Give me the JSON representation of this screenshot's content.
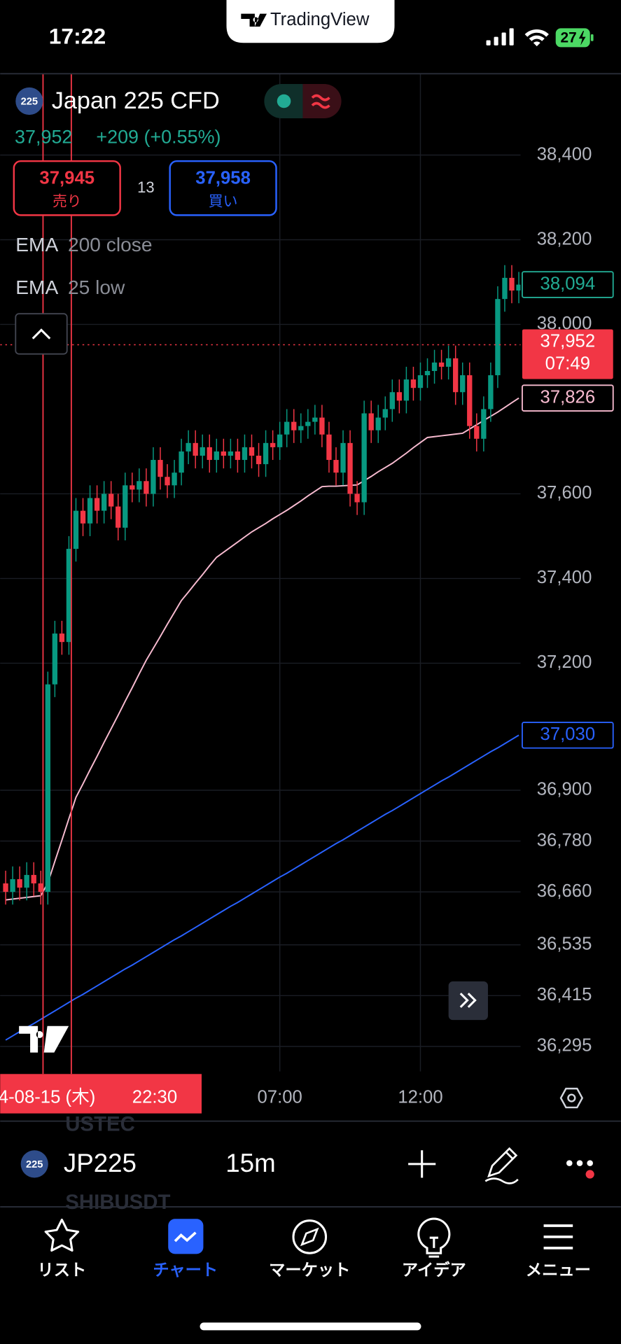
{
  "status_bar": {
    "time": "17:22",
    "battery": "27"
  },
  "app": {
    "brand": "TradingView"
  },
  "symbol": {
    "badge": "225",
    "name": "Japan 225 CFD",
    "price": "37,952",
    "change": "+209 (+0.55%)"
  },
  "quotes": {
    "sell": {
      "price": "37,945",
      "label": "売り"
    },
    "spread": "13",
    "buy": {
      "price": "37,958",
      "label": "買い"
    }
  },
  "indicators": [
    {
      "name": "EMA",
      "params": "200 close"
    },
    {
      "name": "EMA",
      "params": "25 low"
    }
  ],
  "chart_data": {
    "type": "candlestick",
    "grid": true,
    "up_color": "#089981",
    "down_color": "#f23645",
    "categories": [
      null,
      null,
      null,
      null,
      null,
      null,
      null,
      null,
      null,
      null,
      null,
      null,
      null,
      null,
      null,
      null,
      null,
      null,
      null,
      null,
      null,
      null,
      null,
      null,
      null,
      null,
      null,
      null,
      null,
      null,
      null,
      null,
      null,
      null,
      null,
      null,
      null,
      null,
      null,
      "07:00",
      null,
      null,
      null,
      null,
      null,
      null,
      null,
      null,
      null,
      null,
      null,
      null,
      null,
      null,
      null,
      null,
      null,
      null,
      null,
      "12:00",
      null,
      null,
      null,
      null,
      null,
      null,
      null,
      null,
      null,
      null,
      null,
      null,
      null,
      null
    ],
    "open": [
      36680,
      36660,
      36690,
      36670,
      36700,
      36680,
      36660,
      37150,
      37270,
      37250,
      37470,
      37560,
      37530,
      37590,
      37560,
      37600,
      37570,
      37520,
      37620,
      37610,
      37630,
      37600,
      37680,
      37640,
      37620,
      37650,
      37700,
      37720,
      37690,
      37710,
      37680,
      37700,
      37690,
      37700,
      37680,
      37710,
      37690,
      37670,
      37720,
      37710,
      37740,
      37770,
      37750,
      37760,
      37770,
      37780,
      37740,
      37680,
      37650,
      37720,
      37600,
      37580,
      37790,
      37750,
      37780,
      37800,
      37840,
      37820,
      37870,
      37850,
      37880,
      37890,
      37910,
      37900,
      37920,
      37840,
      37880,
      37760,
      37730,
      37800,
      37880,
      38060,
      38110,
      38080
    ],
    "high": [
      36710,
      36720,
      36720,
      36730,
      36730,
      36710,
      37180,
      37300,
      37300,
      37500,
      37590,
      37590,
      37620,
      37620,
      37630,
      37630,
      37600,
      37650,
      37650,
      37660,
      37660,
      37710,
      37710,
      37670,
      37680,
      37730,
      37750,
      37750,
      37740,
      37740,
      37730,
      37730,
      37730,
      37730,
      37740,
      37740,
      37720,
      37750,
      37750,
      37770,
      37800,
      37800,
      37790,
      37800,
      37810,
      37810,
      37770,
      37710,
      37750,
      37750,
      37630,
      37820,
      37820,
      37810,
      37830,
      37870,
      37870,
      37900,
      37900,
      37910,
      37920,
      37940,
      37940,
      37950,
      37950,
      37910,
      37910,
      37790,
      37830,
      37910,
      38090,
      38140,
      38140,
      38124
    ],
    "low": [
      36630,
      36630,
      36640,
      36640,
      36650,
      36630,
      36630,
      37120,
      37220,
      37220,
      37440,
      37500,
      37500,
      37530,
      37530,
      37540,
      37490,
      37490,
      37580,
      37580,
      37570,
      37570,
      37610,
      37590,
      37590,
      37620,
      37670,
      37660,
      37660,
      37650,
      37650,
      37660,
      37660,
      37650,
      37650,
      37660,
      37640,
      37640,
      37680,
      37680,
      37710,
      37720,
      37720,
      37730,
      37740,
      37710,
      37650,
      37620,
      37620,
      37570,
      37550,
      37550,
      37720,
      37720,
      37750,
      37770,
      37790,
      37790,
      37820,
      37820,
      37850,
      37860,
      37870,
      37870,
      37810,
      37810,
      37730,
      37700,
      37700,
      37770,
      37850,
      38030,
      38050,
      38050
    ],
    "close": [
      36660,
      36690,
      36670,
      36700,
      36680,
      36660,
      37150,
      37270,
      37250,
      37470,
      37560,
      37530,
      37590,
      37560,
      37600,
      37570,
      37520,
      37620,
      37610,
      37630,
      37600,
      37680,
      37640,
      37620,
      37650,
      37700,
      37720,
      37690,
      37710,
      37680,
      37700,
      37690,
      37700,
      37680,
      37710,
      37690,
      37670,
      37720,
      37710,
      37740,
      37770,
      37750,
      37760,
      37770,
      37780,
      37740,
      37680,
      37650,
      37720,
      37600,
      37580,
      37790,
      37750,
      37780,
      37800,
      37840,
      37820,
      37870,
      37850,
      37880,
      37890,
      37910,
      37900,
      37920,
      37840,
      37880,
      37760,
      37730,
      37800,
      37880,
      38060,
      38110,
      38080,
      38094
    ],
    "lines": [
      {
        "color": "#2962ff",
        "values": [
          36310,
          36320,
          36330,
          36340,
          36349,
          36359,
          36369,
          36379,
          36389,
          36399,
          36409,
          36418,
          36428,
          36438,
          36448,
          36458,
          36468,
          36478,
          36487,
          36497,
          36507,
          36517,
          36527,
          36537,
          36547,
          36556,
          36566,
          36576,
          36586,
          36596,
          36606,
          36616,
          36626,
          36635,
          36645,
          36655,
          36665,
          36675,
          36685,
          36695,
          36704,
          36714,
          36724,
          36734,
          36744,
          36754,
          36764,
          36774,
          36783,
          36793,
          36803,
          36813,
          36823,
          36833,
          36843,
          36852,
          36862,
          36872,
          36882,
          36892,
          36902,
          36912,
          36922,
          36931,
          36941,
          36951,
          36961,
          36971,
          36981,
          36991,
          37000,
          37010,
          37020,
          37030
        ]
      },
      {
        "color": "#f8bbd0",
        "values": [
          36641,
          36643,
          36645,
          36647,
          36649,
          36651,
          36681,
          36732,
          36782,
          36833,
          36883,
          36915,
          36948,
          36980,
          37013,
          37045,
          37077,
          37110,
          37142,
          37175,
          37207,
          37235,
          37263,
          37292,
          37320,
          37348,
          37368,
          37389,
          37409,
          37430,
          37450,
          37462,
          37474,
          37486,
          37498,
          37510,
          37520,
          37530,
          37541,
          37551,
          37561,
          37572,
          37583,
          37595,
          37606,
          37617,
          37618,
          37618,
          37619,
          37620,
          37621,
          37631,
          37641,
          37652,
          37662,
          37672,
          37684,
          37696,
          37709,
          37721,
          37733,
          37735,
          37737,
          37739,
          37741,
          37743,
          37753,
          37763,
          37773,
          37783,
          37793,
          37804,
          37815,
          37826
        ]
      }
    ],
    "ylim": [
      36236,
      38592
    ],
    "yticks": [
      {
        "value": 38400,
        "label": "38,400"
      },
      {
        "value": 38200,
        "label": "38,200"
      },
      {
        "value": 38000,
        "label": "38,000"
      },
      {
        "value": 37600,
        "label": "37,600"
      },
      {
        "value": 37400,
        "label": "37,400"
      },
      {
        "value": 37200,
        "label": "37,200"
      },
      {
        "value": 36900,
        "label": "36,900"
      },
      {
        "value": 36780,
        "label": "36,780"
      },
      {
        "value": 36660,
        "label": "36,660"
      },
      {
        "value": 36535,
        "label": "36,535"
      },
      {
        "value": 36415,
        "label": "36,415"
      },
      {
        "value": 36295,
        "label": "36,295"
      }
    ],
    "markers": [
      {
        "value": 38094,
        "label": "38,094",
        "color": "#22ab94"
      },
      {
        "value": 37826,
        "label": "37,826",
        "color": "#f8bbd0"
      },
      {
        "value": 37030,
        "label": "37,030",
        "color": "#2962ff"
      }
    ],
    "last_price": {
      "value": 37952,
      "label": "37,952",
      "countdown": "07:49",
      "color": "#f23645"
    },
    "crosshair": {
      "date": "4-08-15 (木)",
      "time": "22:30"
    }
  },
  "toolbar": {
    "badge": "225",
    "symbol": "JP225",
    "interval": "15m",
    "ghost": [
      "USTEC",
      "SHIBUSDT"
    ]
  },
  "nav": [
    {
      "label": "リスト"
    },
    {
      "label": "チャート"
    },
    {
      "label": "マーケット"
    },
    {
      "label": "アイデア"
    },
    {
      "label": "メニュー"
    }
  ]
}
